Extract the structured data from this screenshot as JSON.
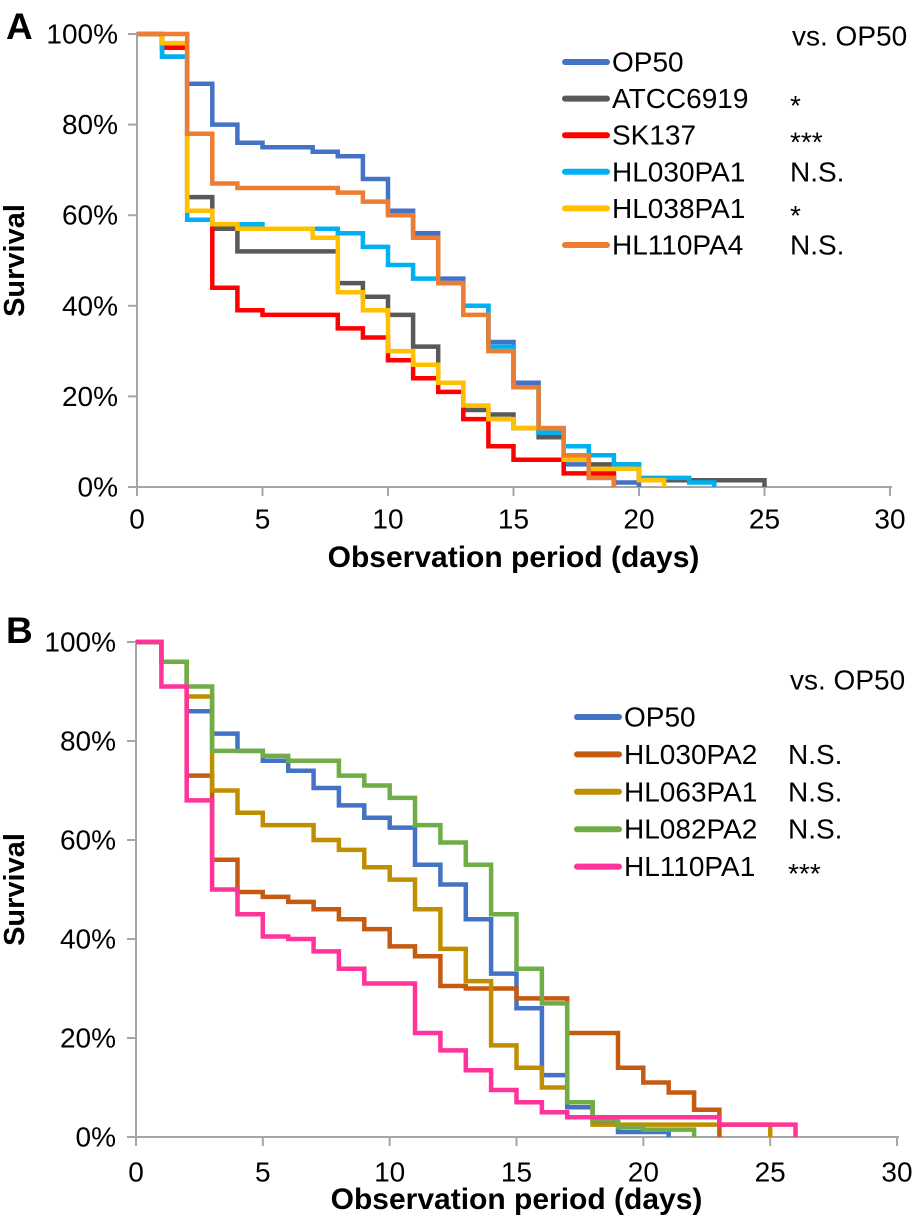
{
  "figure": {
    "background": "#FFFFFF",
    "axis_color": "#A6A6A6",
    "text_color": "#000000"
  },
  "chart_data": [
    {
      "panel": "A",
      "type": "line",
      "subtype": "kaplan-meier-step-survival",
      "legend_header": "vs. OP50",
      "xlabel": "Observation period (days)",
      "ylabel": "Survival",
      "xlim": [
        0,
        30
      ],
      "ylim": [
        0,
        100
      ],
      "xticks": [
        0,
        5,
        10,
        15,
        20,
        25,
        30
      ],
      "ytick_labels": [
        "0%",
        "20%",
        "40%",
        "60%",
        "80%",
        "100%"
      ],
      "grid": false,
      "legend_position": "upper-right-inside",
      "series": [
        {
          "name": "OP50",
          "color": "#4472C4",
          "significance_vs_OP50": "",
          "points": [
            [
              0,
              100
            ],
            [
              1,
              95
            ],
            [
              2,
              89
            ],
            [
              3,
              80
            ],
            [
              4,
              76
            ],
            [
              5,
              75
            ],
            [
              7,
              74
            ],
            [
              8,
              73
            ],
            [
              9,
              68
            ],
            [
              10,
              61
            ],
            [
              11,
              56
            ],
            [
              12,
              46
            ],
            [
              13,
              40
            ],
            [
              14,
              32
            ],
            [
              15,
              23
            ],
            [
              16,
              12
            ],
            [
              17,
              5
            ],
            [
              18,
              2
            ],
            [
              19,
              1
            ],
            [
              20,
              0
            ]
          ]
        },
        {
          "name": "ATCC6919",
          "color": "#595959",
          "significance_vs_OP50": "*",
          "points": [
            [
              0,
              100
            ],
            [
              1,
              97
            ],
            [
              2,
              64
            ],
            [
              3,
              57
            ],
            [
              4,
              52
            ],
            [
              8,
              45
            ],
            [
              9,
              42
            ],
            [
              10,
              38
            ],
            [
              11,
              31
            ],
            [
              12,
              23
            ],
            [
              13,
              17
            ],
            [
              14,
              16
            ],
            [
              15,
              13
            ],
            [
              16,
              11
            ],
            [
              17,
              7
            ],
            [
              18,
              5
            ],
            [
              20,
              1.5
            ],
            [
              25,
              0
            ]
          ]
        },
        {
          "name": "SK137",
          "color": "#FF0000",
          "significance_vs_OP50": "***",
          "points": [
            [
              0,
              100
            ],
            [
              1,
              97
            ],
            [
              2,
              59
            ],
            [
              3,
              44
            ],
            [
              4,
              39
            ],
            [
              5,
              38
            ],
            [
              8,
              35
            ],
            [
              9,
              33
            ],
            [
              10,
              28
            ],
            [
              11,
              24
            ],
            [
              12,
              21
            ],
            [
              13,
              15
            ],
            [
              14,
              9
            ],
            [
              15,
              6
            ],
            [
              17,
              3
            ],
            [
              19,
              0
            ]
          ]
        },
        {
          "name": "HL030PA1",
          "color": "#00B0F0",
          "significance_vs_OP50": "N.S.",
          "points": [
            [
              0,
              100
            ],
            [
              1,
              95
            ],
            [
              2,
              59
            ],
            [
              3,
              58
            ],
            [
              5,
              57
            ],
            [
              8,
              56
            ],
            [
              9,
              53
            ],
            [
              10,
              49
            ],
            [
              11,
              46
            ],
            [
              12,
              45
            ],
            [
              13,
              40
            ],
            [
              14,
              31
            ],
            [
              15,
              22
            ],
            [
              16,
              12
            ],
            [
              17,
              9
            ],
            [
              18,
              7
            ],
            [
              19,
              5
            ],
            [
              20,
              2
            ],
            [
              22,
              1
            ],
            [
              23,
              0
            ]
          ]
        },
        {
          "name": "HL038PA1",
          "color": "#FFC000",
          "significance_vs_OP50": "*",
          "points": [
            [
              0,
              100
            ],
            [
              1,
              98
            ],
            [
              2,
              61
            ],
            [
              3,
              58
            ],
            [
              4,
              57
            ],
            [
              7,
              55
            ],
            [
              8,
              43
            ],
            [
              9,
              39
            ],
            [
              10,
              30
            ],
            [
              11,
              27
            ],
            [
              12,
              23
            ],
            [
              13,
              18
            ],
            [
              14,
              15
            ],
            [
              15,
              13
            ],
            [
              17,
              6
            ],
            [
              18,
              4
            ],
            [
              20,
              1.5
            ],
            [
              21,
              0
            ]
          ]
        },
        {
          "name": "HL110PA4",
          "color": "#ED7D31",
          "significance_vs_OP50": "N.S.",
          "points": [
            [
              0,
              100
            ],
            [
              2,
              78
            ],
            [
              3,
              67
            ],
            [
              4,
              66
            ],
            [
              8,
              65
            ],
            [
              9,
              63
            ],
            [
              10,
              60
            ],
            [
              11,
              55
            ],
            [
              12,
              45
            ],
            [
              13,
              38
            ],
            [
              14,
              30
            ],
            [
              15,
              22
            ],
            [
              16,
              13
            ],
            [
              17,
              7
            ],
            [
              18,
              2
            ],
            [
              19,
              0
            ]
          ]
        }
      ]
    },
    {
      "panel": "B",
      "type": "line",
      "subtype": "kaplan-meier-step-survival",
      "legend_header": "vs. OP50",
      "xlabel": "Observation period (days)",
      "ylabel": "Survival",
      "xlim": [
        0,
        30
      ],
      "ylim": [
        0,
        100
      ],
      "xticks": [
        0,
        5,
        10,
        15,
        20,
        25,
        30
      ],
      "ytick_labels": [
        "0%",
        "20%",
        "40%",
        "60%",
        "80%",
        "100%"
      ],
      "grid": false,
      "legend_position": "upper-right-inside",
      "series": [
        {
          "name": "OP50",
          "color": "#4472C4",
          "significance_vs_OP50": "",
          "points": [
            [
              0,
              100
            ],
            [
              1,
              96
            ],
            [
              2,
              86
            ],
            [
              3,
              81.5
            ],
            [
              4,
              78
            ],
            [
              5,
              76
            ],
            [
              6,
              74
            ],
            [
              7,
              70.5
            ],
            [
              8,
              67
            ],
            [
              9,
              64.5
            ],
            [
              10,
              62.5
            ],
            [
              11,
              55
            ],
            [
              12,
              51
            ],
            [
              13,
              44
            ],
            [
              14,
              33
            ],
            [
              15,
              26
            ],
            [
              16,
              12.5
            ],
            [
              17,
              6
            ],
            [
              18,
              3
            ],
            [
              19,
              1
            ],
            [
              21,
              0
            ]
          ]
        },
        {
          "name": "HL030PA2",
          "color": "#C55A11",
          "significance_vs_OP50": "N.S.",
          "points": [
            [
              0,
              100
            ],
            [
              1,
              96
            ],
            [
              2,
              73
            ],
            [
              3,
              56
            ],
            [
              4,
              49.5
            ],
            [
              5,
              48.5
            ],
            [
              6,
              47.5
            ],
            [
              7,
              46
            ],
            [
              8,
              44
            ],
            [
              9,
              42
            ],
            [
              10,
              38.5
            ],
            [
              11,
              36.5
            ],
            [
              12,
              30.5
            ],
            [
              13,
              30
            ],
            [
              15,
              28
            ],
            [
              17,
              21
            ],
            [
              19,
              14
            ],
            [
              20,
              11
            ],
            [
              21,
              9
            ],
            [
              22,
              5.5
            ],
            [
              23,
              0
            ]
          ]
        },
        {
          "name": "HL063PA1",
          "color": "#BF8F00",
          "significance_vs_OP50": "N.S.",
          "points": [
            [
              0,
              100
            ],
            [
              1,
              96
            ],
            [
              2,
              89
            ],
            [
              3,
              70
            ],
            [
              4,
              65.5
            ],
            [
              5,
              63
            ],
            [
              7,
              60
            ],
            [
              8,
              58
            ],
            [
              9,
              54.5
            ],
            [
              10,
              52
            ],
            [
              11,
              46
            ],
            [
              12,
              38
            ],
            [
              13,
              31.5
            ],
            [
              14,
              18.5
            ],
            [
              15,
              14
            ],
            [
              16,
              10
            ],
            [
              17,
              7
            ],
            [
              18,
              2.5
            ],
            [
              25,
              0
            ]
          ]
        },
        {
          "name": "HL082PA2",
          "color": "#70AD47",
          "significance_vs_OP50": "N.S.",
          "points": [
            [
              0,
              100
            ],
            [
              1,
              96
            ],
            [
              2,
              91
            ],
            [
              3,
              78
            ],
            [
              5,
              77
            ],
            [
              6,
              76
            ],
            [
              8,
              73
            ],
            [
              9,
              71
            ],
            [
              10,
              68.5
            ],
            [
              11,
              63
            ],
            [
              12,
              59.5
            ],
            [
              13,
              55
            ],
            [
              14,
              45
            ],
            [
              15,
              34
            ],
            [
              16,
              27
            ],
            [
              17,
              7
            ],
            [
              18,
              3.5
            ],
            [
              19,
              2
            ],
            [
              20,
              1.5
            ],
            [
              22,
              0
            ]
          ]
        },
        {
          "name": "HL110PA1",
          "color": "#FF3399",
          "significance_vs_OP50": "***",
          "points": [
            [
              0,
              100
            ],
            [
              1,
              91
            ],
            [
              2,
              68
            ],
            [
              3,
              50
            ],
            [
              4,
              45
            ],
            [
              5,
              40.5
            ],
            [
              6,
              40
            ],
            [
              7,
              37.5
            ],
            [
              8,
              34
            ],
            [
              9,
              31
            ],
            [
              11,
              21
            ],
            [
              12,
              17.5
            ],
            [
              13,
              13.5
            ],
            [
              14,
              9.5
            ],
            [
              15,
              7
            ],
            [
              16,
              5
            ],
            [
              17,
              4
            ],
            [
              23,
              2.5
            ],
            [
              26,
              0
            ]
          ]
        }
      ]
    }
  ]
}
